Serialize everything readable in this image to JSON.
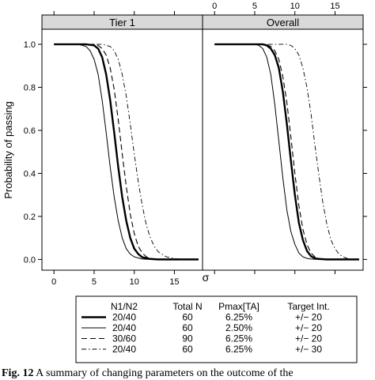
{
  "chart_data": {
    "type": "line",
    "x_axis_label": "σ",
    "y_axis_label": "Probability of passing",
    "xlim": [
      -1.5,
      18.5
    ],
    "ylim": [
      -0.05,
      1.07
    ],
    "x_ticks": [
      0,
      5,
      10,
      15
    ],
    "y_ticks": [
      0.0,
      0.2,
      0.4,
      0.6,
      0.8,
      1.0
    ],
    "y_tick_labels": [
      "0.0",
      "0.2",
      "0.4",
      "0.6",
      "0.8",
      "1.0"
    ],
    "x_tick_labels": [
      "0",
      "5",
      "10",
      "15"
    ],
    "panels": [
      {
        "title": "Tier 1",
        "series": [
          {
            "style": "solid-thick",
            "x": [
              0,
              4,
              5,
              5.5,
              6,
              6.5,
              7,
              7.5,
              8,
              8.5,
              9,
              9.5,
              10,
              10.5,
              11,
              12,
              13,
              15,
              18
            ],
            "y": [
              1.0,
              1.0,
              0.995,
              0.98,
              0.94,
              0.86,
              0.74,
              0.59,
              0.43,
              0.29,
              0.18,
              0.1,
              0.05,
              0.025,
              0.01,
              0.002,
              0.0,
              0.0,
              0.0
            ]
          },
          {
            "style": "solid-thin",
            "x": [
              0,
              3,
              4,
              4.5,
              5,
              5.5,
              6,
              6.5,
              7,
              7.5,
              8,
              8.5,
              9,
              9.5,
              10,
              11,
              12,
              15,
              18
            ],
            "y": [
              1.0,
              1.0,
              0.99,
              0.97,
              0.93,
              0.86,
              0.74,
              0.59,
              0.43,
              0.29,
              0.18,
              0.1,
              0.05,
              0.025,
              0.012,
              0.002,
              0.0,
              0.0,
              0.0
            ]
          },
          {
            "style": "dashed",
            "x": [
              0,
              5,
              5.5,
              6,
              6.5,
              7,
              7.5,
              8,
              8.5,
              9,
              9.5,
              10,
              10.5,
              11,
              11.5,
              12,
              13,
              15,
              18
            ],
            "y": [
              1.0,
              1.0,
              0.995,
              0.98,
              0.95,
              0.89,
              0.79,
              0.65,
              0.49,
              0.34,
              0.21,
              0.12,
              0.06,
              0.03,
              0.012,
              0.005,
              0.0,
              0.0,
              0.0
            ]
          },
          {
            "style": "dash-dot",
            "x": [
              0,
              6,
              7,
              7.5,
              8,
              8.5,
              9,
              9.5,
              10,
              10.5,
              11,
              11.5,
              12,
              12.5,
              13,
              14,
              15,
              16,
              18
            ],
            "y": [
              1.0,
              1.0,
              0.99,
              0.97,
              0.93,
              0.86,
              0.76,
              0.63,
              0.49,
              0.36,
              0.25,
              0.16,
              0.1,
              0.06,
              0.035,
              0.012,
              0.004,
              0.001,
              0.0
            ]
          }
        ]
      },
      {
        "title": "Overall",
        "series": [
          {
            "style": "solid-thick",
            "x": [
              0,
              6,
              6.5,
              7,
              7.5,
              8,
              8.5,
              9,
              9.5,
              10,
              10.5,
              11,
              11.5,
              12,
              12.5,
              13,
              14,
              15,
              18
            ],
            "y": [
              1.0,
              1.0,
              0.995,
              0.98,
              0.95,
              0.89,
              0.78,
              0.63,
              0.46,
              0.3,
              0.17,
              0.09,
              0.04,
              0.015,
              0.005,
              0.002,
              0.0,
              0.0,
              0.0
            ]
          },
          {
            "style": "solid-thin",
            "x": [
              0,
              5,
              5.5,
              6,
              6.5,
              7,
              7.5,
              8,
              8.5,
              9,
              9.5,
              10,
              10.5,
              11,
              11.5,
              12,
              13,
              15,
              18
            ],
            "y": [
              1.0,
              1.0,
              0.995,
              0.98,
              0.94,
              0.86,
              0.72,
              0.55,
              0.38,
              0.23,
              0.13,
              0.07,
              0.03,
              0.012,
              0.005,
              0.002,
              0.0,
              0.0,
              0.0
            ]
          },
          {
            "style": "dashed",
            "x": [
              0,
              6,
              6.5,
              7,
              7.5,
              8,
              8.5,
              9,
              9.5,
              10,
              10.5,
              11,
              11.5,
              12,
              12.5,
              13,
              14,
              15,
              18
            ],
            "y": [
              1.0,
              1.0,
              0.998,
              0.99,
              0.97,
              0.93,
              0.85,
              0.73,
              0.57,
              0.4,
              0.25,
              0.14,
              0.07,
              0.03,
              0.012,
              0.005,
              0.0,
              0.0,
              0.0
            ]
          },
          {
            "style": "dash-dot",
            "x": [
              0,
              9,
              9.5,
              10,
              10.5,
              11,
              11.5,
              12,
              12.5,
              13,
              13.5,
              14,
              14.5,
              15,
              15.5,
              16,
              16.5,
              17,
              18
            ],
            "y": [
              1.0,
              1.0,
              0.995,
              0.98,
              0.95,
              0.89,
              0.8,
              0.68,
              0.53,
              0.39,
              0.26,
              0.16,
              0.09,
              0.05,
              0.025,
              0.012,
              0.005,
              0.002,
              0.0
            ]
          }
        ]
      }
    ],
    "legend": {
      "columns": [
        "N1/N2",
        "Total N",
        "Pmax[TA]",
        "Target Int."
      ],
      "rows": [
        {
          "style": "solid-thick",
          "cells": [
            "20/40",
            "60",
            "6.25%",
            "+/− 20"
          ]
        },
        {
          "style": "solid-thin",
          "cells": [
            "20/40",
            "60",
            "2.50%",
            "+/− 20"
          ]
        },
        {
          "style": "dashed",
          "cells": [
            "30/60",
            "90",
            "6.25%",
            "+/− 20"
          ]
        },
        {
          "style": "dash-dot",
          "cells": [
            "20/40",
            "60",
            "6.25%",
            "+/− 30"
          ]
        }
      ]
    }
  },
  "caption": {
    "label": "Fig. 12",
    "text": "  A summary of changing parameters on the outcome of the"
  }
}
